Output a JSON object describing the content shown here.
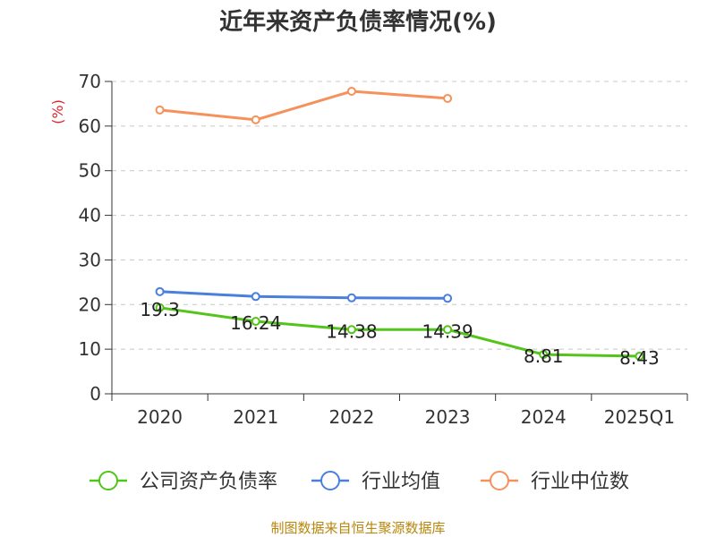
{
  "chart_data": {
    "type": "line",
    "title": "近年来资产负债率情况(%)",
    "ylabel": "(%)",
    "xlabel": "",
    "ylim": [
      0,
      70
    ],
    "yticks": [
      0,
      10,
      20,
      30,
      40,
      50,
      60,
      70
    ],
    "categories": [
      "2020",
      "2021",
      "2022",
      "2023",
      "2024",
      "2025Q1"
    ],
    "grid": true,
    "legend_position": "bottom",
    "series": [
      {
        "name": "公司资产负债率",
        "color": "#52c41a",
        "values": [
          19.3,
          16.24,
          14.38,
          14.39,
          8.81,
          8.43
        ],
        "labels": [
          "19.3",
          "16.24",
          "14.38",
          "14.39",
          "8.81",
          "8.43"
        ]
      },
      {
        "name": "行业均值",
        "color": "#4a7fdc",
        "values": [
          22.9,
          21.8,
          21.5,
          21.4,
          null,
          null
        ]
      },
      {
        "name": "行业中位数",
        "color": "#f5925c",
        "values": [
          63.6,
          61.4,
          67.8,
          66.2,
          null,
          null
        ]
      }
    ]
  },
  "source": "制图数据来自恒生聚源数据库"
}
